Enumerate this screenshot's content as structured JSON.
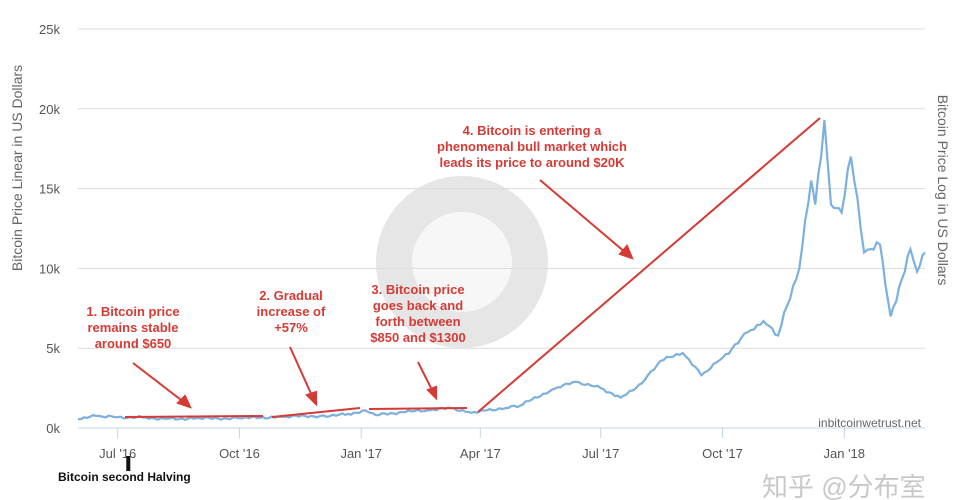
{
  "chart_data": {
    "type": "line",
    "ylabel": "Bitcoin Price Linear in US Dollars",
    "ylabel_right": "Bitcoin Price Log in US Dollars",
    "ylim": [
      0,
      25000
    ],
    "yticks": [
      0,
      5000,
      10000,
      15000,
      20000,
      25000
    ],
    "ytick_labels": [
      "0k",
      "5k",
      "10k",
      "15k",
      "20k",
      "25k"
    ],
    "xlim": [
      "2016-06-01",
      "2018-03-03"
    ],
    "xticks": [
      "2016-07-01",
      "2016-10-01",
      "2017-01-01",
      "2017-04-01",
      "2017-07-01",
      "2017-10-01",
      "2018-01-01"
    ],
    "xtick_labels": [
      "Jul '16",
      "Oct '16",
      "Jan '17",
      "Apr '17",
      "Jul '17",
      "Oct '17",
      "Jan '18"
    ],
    "grid": true,
    "line_color": "#7cb0de",
    "annotation_color": "#d63a35",
    "series": [
      {
        "x": [
          "2016-06-01",
          "2016-06-15",
          "2016-07-01",
          "2016-07-20",
          "2016-08-05",
          "2016-09-01",
          "2016-10-01",
          "2016-11-01",
          "2016-12-01",
          "2016-12-20",
          "2017-01-04",
          "2017-01-12",
          "2017-02-01",
          "2017-02-20",
          "2017-03-10",
          "2017-03-25",
          "2017-04-01",
          "2017-04-20",
          "2017-05-01",
          "2017-05-25",
          "2017-06-12",
          "2017-07-01",
          "2017-07-16",
          "2017-08-01",
          "2017-08-15",
          "2017-09-01",
          "2017-09-15",
          "2017-10-01",
          "2017-10-20",
          "2017-11-01",
          "2017-11-12",
          "2017-11-28",
          "2017-12-07",
          "2017-12-10",
          "2017-12-17",
          "2017-12-22",
          "2017-12-30",
          "2018-01-06",
          "2018-01-16",
          "2018-01-28",
          "2018-02-05",
          "2018-02-20",
          "2018-02-25",
          "2018-03-03"
        ],
        "y": [
          550,
          750,
          680,
          660,
          580,
          600,
          610,
          700,
          760,
          830,
          1100,
          800,
          1000,
          1100,
          1250,
          950,
          1080,
          1250,
          1400,
          2400,
          2900,
          2500,
          1900,
          2800,
          4200,
          4700,
          3300,
          4400,
          6000,
          6700,
          5800,
          10000,
          15500,
          14000,
          19300,
          14000,
          13500,
          17000,
          11000,
          11500,
          7000,
          11200,
          9800,
          11000
        ]
      }
    ],
    "annotations": [
      {
        "text": [
          "1. Bitcoin price",
          "remains stable",
          "around $650"
        ]
      },
      {
        "text": [
          "2. Gradual",
          "increase of",
          "+57%"
        ]
      },
      {
        "text": [
          "3. Bitcoin price",
          "goes back and",
          "forth between",
          "$850 and $1300"
        ]
      },
      {
        "text": [
          "4. Bitcoin is entering a",
          "phenomenal bull market which",
          "leads its price to around $20K"
        ]
      }
    ],
    "event_marker": {
      "date": "2016-07-09",
      "label": "Bitcoin second Halving"
    },
    "credit": "inbitcoinwetrust.net",
    "watermark": "知乎 @分布室"
  }
}
